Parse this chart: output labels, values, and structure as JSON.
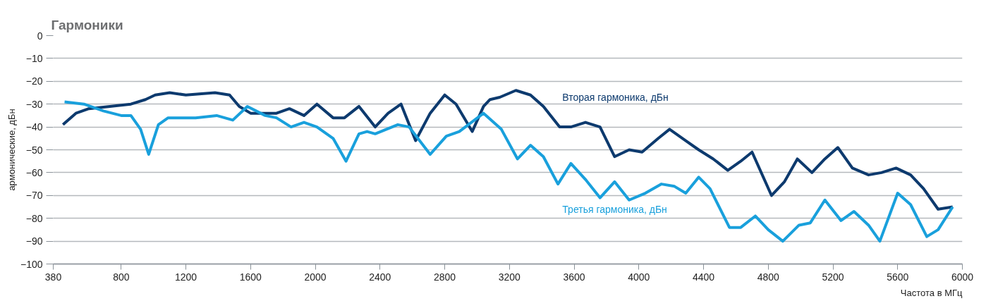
{
  "chart_data": {
    "type": "line",
    "title": "Гармоники",
    "xlabel": "Частота в МГц",
    "ylabel": "армонические, дБн",
    "xlim": [
      380,
      6000
    ],
    "xticks": [
      380,
      800,
      1200,
      1600,
      2000,
      2400,
      2800,
      3200,
      3600,
      4000,
      4400,
      4800,
      5200,
      5600,
      6000
    ],
    "ylim": [
      -100,
      0
    ],
    "yticks": [
      -100,
      -90,
      -80,
      -70,
      -60,
      -50,
      -40,
      -30,
      -20,
      -10,
      0
    ],
    "grid": "y",
    "marker": "none",
    "line_style": "solid",
    "series": [
      {
        "name": "Вторая гармоника, дБн",
        "color": "#0d3a6e",
        "x": [
          440,
          520,
          600,
          730,
          860,
          950,
          1010,
          1100,
          1200,
          1380,
          1470,
          1530,
          1600,
          1680,
          1760,
          1840,
          1930,
          2010,
          2110,
          2180,
          2270,
          2370,
          2450,
          2530,
          2620,
          2710,
          2800,
          2870,
          2970,
          3040,
          3080,
          3140,
          3240,
          3330,
          3410,
          3510,
          3580,
          3670,
          3760,
          3850,
          3940,
          4020,
          4120,
          4190,
          4290,
          4370,
          4460,
          4550,
          4630,
          4700,
          4820,
          4900,
          4980,
          5070,
          5150,
          5230,
          5320,
          5420,
          5500,
          5590,
          5680,
          5760,
          5850,
          5940
        ],
        "values": [
          -39,
          -34,
          -32,
          -31,
          -30,
          -28,
          -26,
          -25,
          -26,
          -25,
          -26,
          -31,
          -34,
          -34,
          -34,
          -32,
          -35,
          -30,
          -36,
          -36,
          -31,
          -40,
          -34,
          -30,
          -46,
          -34,
          -26,
          -30,
          -42,
          -31,
          -28,
          -27,
          -24,
          -26,
          -31,
          -40,
          -40,
          -38,
          -40,
          -53,
          -50,
          -51,
          -45,
          -41,
          -46,
          -50,
          -54,
          -59,
          -55,
          -51,
          -70,
          -64,
          -54,
          -60,
          -54,
          -49,
          -58,
          -61,
          -60,
          -58,
          -61,
          -67,
          -76,
          -75
        ]
      },
      {
        "name": "Третья гармоника, дБн",
        "color": "#19a0dc",
        "x": [
          450,
          570,
          690,
          800,
          860,
          920,
          970,
          1030,
          1090,
          1260,
          1390,
          1490,
          1580,
          1690,
          1760,
          1850,
          1930,
          2010,
          2110,
          2190,
          2270,
          2320,
          2370,
          2510,
          2580,
          2710,
          2810,
          2890,
          3040,
          3150,
          3250,
          3330,
          3410,
          3500,
          3580,
          3670,
          3760,
          3850,
          3940,
          4040,
          4140,
          4220,
          4290,
          4370,
          4440,
          4560,
          4630,
          4720,
          4800,
          4890,
          4990,
          5060,
          5150,
          5250,
          5330,
          5420,
          5490,
          5600,
          5680,
          5780,
          5850,
          5940
        ],
        "values": [
          -29,
          -30,
          -33,
          -35,
          -35,
          -41,
          -52,
          -39,
          -36,
          -36,
          -35,
          -37,
          -31,
          -35,
          -36,
          -40,
          -38,
          -40,
          -45,
          -55,
          -43,
          -42,
          -43,
          -39,
          -40,
          -52,
          -44,
          -42,
          -34,
          -41,
          -54,
          -48,
          -53,
          -65,
          -56,
          -63,
          -71,
          -64,
          -72,
          -69,
          -65,
          -66,
          -69,
          -62,
          -67,
          -84,
          -84,
          -79,
          -85,
          -90,
          -83,
          -82,
          -72,
          -81,
          -77,
          -83,
          -90,
          -69,
          -74,
          -88,
          -85,
          -75
        ]
      }
    ]
  }
}
